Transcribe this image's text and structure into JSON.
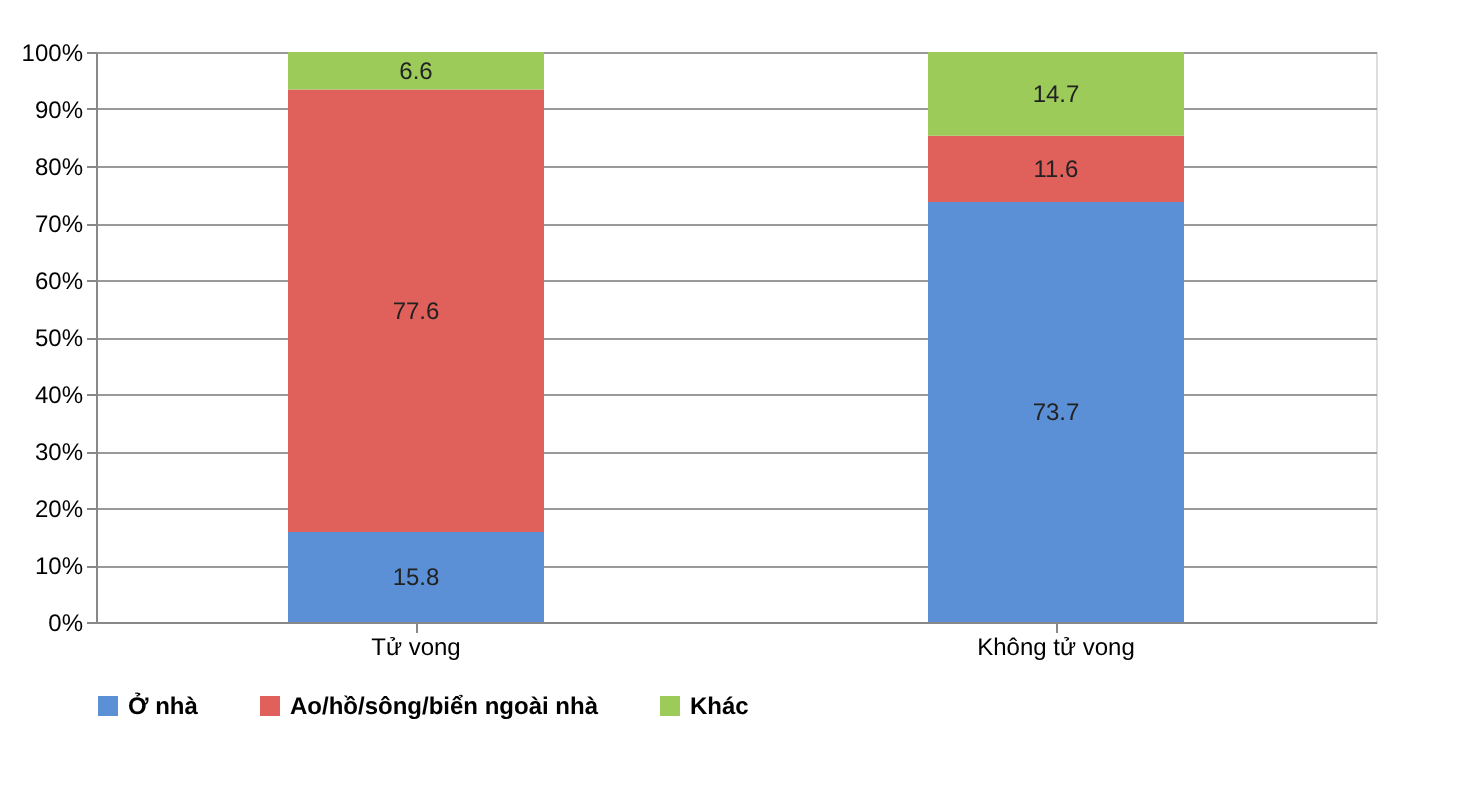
{
  "chart_data": {
    "type": "bar",
    "stacked": true,
    "categories": [
      "Tử vong",
      "Không tử vong"
    ],
    "series": [
      {
        "name": "Ở nhà",
        "color": "#5b8fd6",
        "values": [
          15.8,
          73.7
        ]
      },
      {
        "name": "Ao/hồ/sông/biển ngoài nhà",
        "color": "#e0605c",
        "values": [
          77.6,
          11.6
        ]
      },
      {
        "name": "Khác",
        "color": "#9ccb5a",
        "values": [
          6.6,
          14.7
        ]
      }
    ],
    "ylim": [
      0,
      100
    ],
    "yticks": [
      {
        "value": 0,
        "label": "0%"
      },
      {
        "value": 10,
        "label": "10%"
      },
      {
        "value": 20,
        "label": "20%"
      },
      {
        "value": 30,
        "label": "30%"
      },
      {
        "value": 40,
        "label": "40%"
      },
      {
        "value": 50,
        "label": "50%"
      },
      {
        "value": 60,
        "label": "60%"
      },
      {
        "value": 70,
        "label": "70%"
      },
      {
        "value": 80,
        "label": "80%"
      },
      {
        "value": 90,
        "label": "90%"
      },
      {
        "value": 100,
        "label": "100%"
      }
    ],
    "grid": "y",
    "legend": "bottom",
    "data_labels": true
  }
}
